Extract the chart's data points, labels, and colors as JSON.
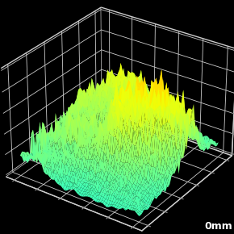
{
  "title": "",
  "xlabel": "0mm",
  "background_color": "#000000",
  "pane_color": "#000000",
  "grid_color": "#cccccc",
  "colormap": "jet",
  "vmin": 0.0,
  "vmax": 1.0,
  "elev": 30,
  "azim": -55,
  "nx": 55,
  "ny": 55,
  "seed": 7,
  "xlabel_color": "#ffffff",
  "xlabel_fontsize": 9,
  "tick_color": "#888888",
  "spine_color": "#aaaaaa"
}
